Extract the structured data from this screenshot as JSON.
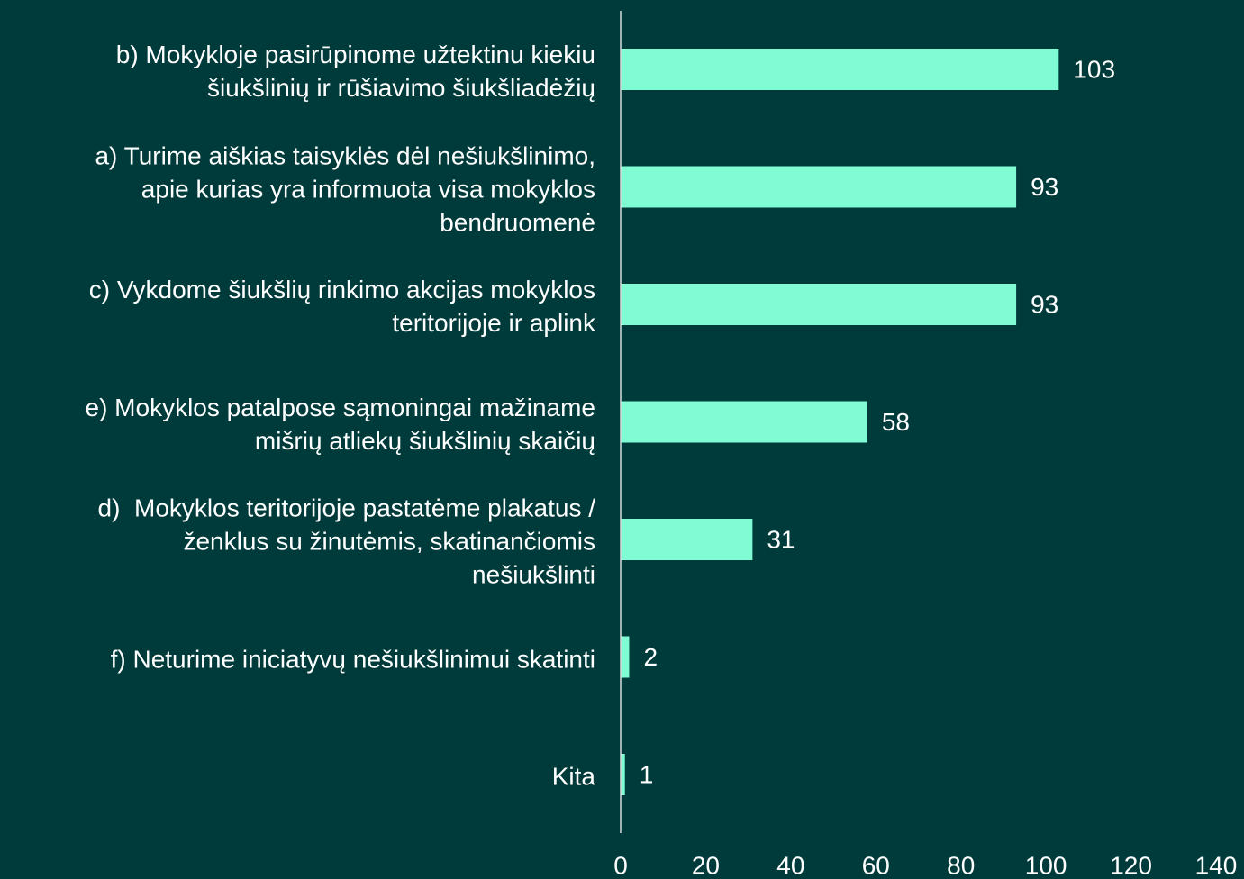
{
  "chart_data": {
    "type": "hbar",
    "categories": [
      "b) Mokykloje pasirūpinome užtektinu kiekiu\nšiukšlinių ir rūšiavimo šiukšliadėžių",
      "a) Turime aiškias taisyklės dėl nešiukšlinimo,\napie kurias yra informuota visa mokyklos\nbendruomenė",
      "c) Vykdome šiukšlių rinkimo akcijas mokyklos\nteritorijoje ir aplink",
      "e) Mokyklos patalpose sąmoningai mažiname\nmišrių atliekų šiukšlinių skaičių",
      "d)  Mokyklos teritorijoje pastatėme plakatus /\nženklus su žinutėmis, skatinančiomis\nnešiukšlinti",
      "f) Neturime iniciatyvų nešiukšlinimui skatinti",
      "Kita"
    ],
    "values": [
      103,
      93,
      93,
      58,
      31,
      2,
      1
    ],
    "color": "#7ffcd4",
    "xlim": [
      0,
      140
    ],
    "xticks": [
      0,
      20,
      40,
      60,
      80,
      100,
      120,
      140
    ],
    "grid": false
  }
}
